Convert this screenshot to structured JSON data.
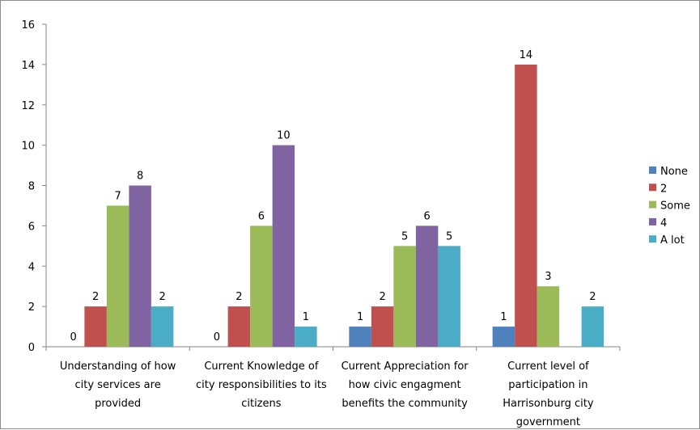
{
  "chart_data": {
    "type": "bar",
    "title": "",
    "xlabel": "",
    "ylabel": "",
    "ylim": [
      0,
      16
    ],
    "yticks": [
      0,
      2,
      4,
      6,
      8,
      10,
      12,
      14,
      16
    ],
    "grid": false,
    "legend_position": "right",
    "categories": [
      [
        "Understanding of how",
        "city services are",
        "provided"
      ],
      [
        "Current Knowledge of",
        "city responsibilities to its",
        "citizens"
      ],
      [
        "Current Appreciation for",
        "how civic engagment",
        "benefits the community"
      ],
      [
        "Current level of",
        "participation in",
        "Harrisonburg city",
        "government"
      ]
    ],
    "series": [
      {
        "name": "None",
        "color": "#4f81bd",
        "values": [
          0,
          0,
          1,
          1
        ]
      },
      {
        "name": "2",
        "color": "#c0504d",
        "values": [
          2,
          2,
          2,
          14
        ]
      },
      {
        "name": "Some",
        "color": "#9bbb59",
        "values": [
          7,
          6,
          5,
          3
        ]
      },
      {
        "name": "4",
        "color": "#8064a2",
        "values": [
          8,
          10,
          6,
          null
        ]
      },
      {
        "name": "A lot",
        "color": "#4bacc6",
        "values": [
          2,
          1,
          5,
          2
        ]
      }
    ]
  }
}
